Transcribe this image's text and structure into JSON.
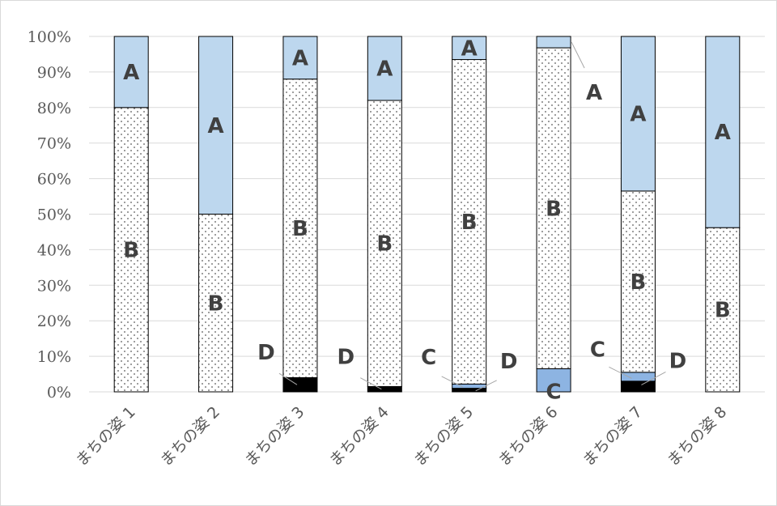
{
  "chart_data": {
    "type": "bar",
    "stacked": "percent",
    "categories": [
      "まちの姿 1",
      "まちの姿 2",
      "まちの姿 3",
      "まちの姿 4",
      "まちの姿 5",
      "まちの姿 6",
      "まちの姿 7",
      "まちの姿 8"
    ],
    "series": [
      {
        "name": "D",
        "values": [
          0,
          0,
          4,
          1.5,
          1,
          0,
          3,
          0
        ]
      },
      {
        "name": "C",
        "values": [
          0,
          0,
          0,
          0,
          1.2,
          6.5,
          2.5,
          0
        ]
      },
      {
        "name": "B",
        "values": [
          80,
          50,
          84,
          80.5,
          91.3,
          90.3,
          51,
          46.2
        ]
      },
      {
        "name": "A",
        "values": [
          20,
          50,
          12,
          18,
          6.5,
          3.2,
          43.5,
          53.8
        ]
      }
    ],
    "y_ticks": [
      "0%",
      "10%",
      "20%",
      "30%",
      "40%",
      "50%",
      "60%",
      "70%",
      "80%",
      "90%",
      "100%"
    ],
    "ylim": [
      0,
      100
    ],
    "title": "",
    "xlabel": "",
    "ylabel": "",
    "grid": true,
    "legend": "none",
    "colors": {
      "A": "#bdd7ee",
      "B": "#ffffff",
      "B_pattern": "dotted",
      "C": "#8db4e2",
      "D": "#000000",
      "gridline": "#d9d9d9",
      "axis_text": "#595959",
      "label_text": "#404040"
    },
    "segment_labels": [
      {
        "category": 0,
        "series": "A",
        "text": "A"
      },
      {
        "category": 0,
        "series": "B",
        "text": "B"
      },
      {
        "category": 1,
        "series": "A",
        "text": "A"
      },
      {
        "category": 1,
        "series": "B",
        "text": "B"
      },
      {
        "category": 2,
        "series": "A",
        "text": "A"
      },
      {
        "category": 2,
        "series": "B",
        "text": "B"
      },
      {
        "category": 2,
        "series": "D",
        "text": "D",
        "callout": true
      },
      {
        "category": 3,
        "series": "A",
        "text": "A"
      },
      {
        "category": 3,
        "series": "B",
        "text": "B"
      },
      {
        "category": 3,
        "series": "D",
        "text": "D",
        "callout": true
      },
      {
        "category": 4,
        "series": "A",
        "text": "A"
      },
      {
        "category": 4,
        "series": "B",
        "text": "B"
      },
      {
        "category": 4,
        "series": "C",
        "text": "C",
        "callout": true
      },
      {
        "category": 4,
        "series": "D",
        "text": "D",
        "callout": true
      },
      {
        "category": 5,
        "series": "A",
        "text": "A",
        "callout": true
      },
      {
        "category": 5,
        "series": "B",
        "text": "B"
      },
      {
        "category": 5,
        "series": "C",
        "text": "C"
      },
      {
        "category": 6,
        "series": "A",
        "text": "A"
      },
      {
        "category": 6,
        "series": "B",
        "text": "B"
      },
      {
        "category": 6,
        "series": "C",
        "text": "C",
        "callout": true
      },
      {
        "category": 6,
        "series": "D",
        "text": "D",
        "callout": true
      },
      {
        "category": 7,
        "series": "A",
        "text": "A"
      },
      {
        "category": 7,
        "series": "B",
        "text": "B"
      }
    ]
  }
}
